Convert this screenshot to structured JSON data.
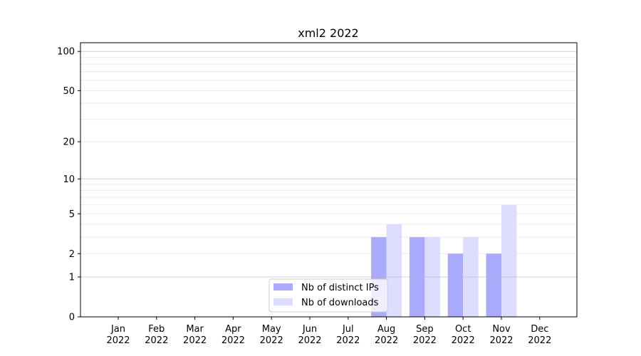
{
  "chart_data": {
    "type": "bar",
    "title": "xml2 2022",
    "xlabel": "",
    "ylabel": "",
    "yscale": "log(1+y)",
    "ylim": [
      0,
      116
    ],
    "yticks": [
      0,
      1,
      2,
      5,
      10,
      20,
      50,
      100
    ],
    "ytick_labels": [
      "0",
      "1",
      "2",
      "5",
      "10",
      "20",
      "50",
      "100"
    ],
    "categories": [
      "Jan\n2022",
      "Feb\n2022",
      "Mar\n2022",
      "Apr\n2022",
      "May\n2022",
      "Jun\n2022",
      "Jul\n2022",
      "Aug\n2022",
      "Sep\n2022",
      "Oct\n2022",
      "Nov\n2022",
      "Dec\n2022"
    ],
    "series": [
      {
        "name": "Nb of distinct IPs",
        "color": "#aaaaff",
        "values": [
          0,
          0,
          0,
          0,
          0,
          0,
          0,
          3,
          3,
          2,
          2,
          0
        ]
      },
      {
        "name": "Nb of downloads",
        "color": "#ddddff",
        "values": [
          0,
          0,
          0,
          0,
          0,
          0,
          0,
          4,
          3,
          3,
          6,
          0
        ]
      }
    ],
    "grid": true,
    "legend": "lower-center"
  }
}
